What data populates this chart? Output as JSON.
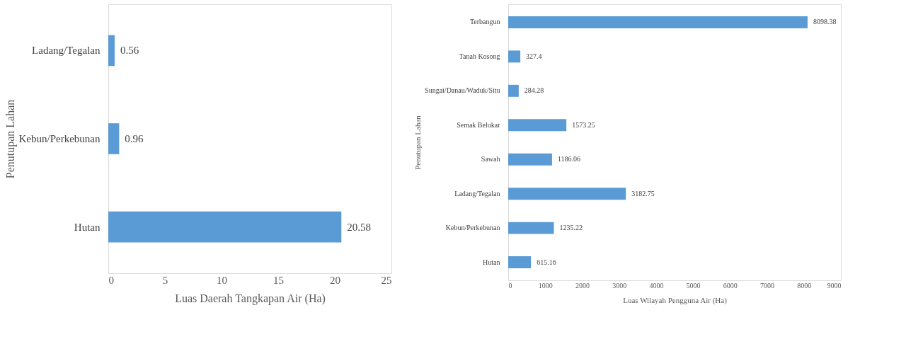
{
  "chart_data": [
    {
      "type": "bar",
      "orientation": "horizontal",
      "categories": [
        "Ladang/Tegalan",
        "Kebun/Perkebunan",
        "Hutan"
      ],
      "values": [
        0.56,
        0.96,
        20.58
      ],
      "color": "#5b9bd5",
      "xlim": [
        0,
        25
      ],
      "xticks": [
        0,
        5,
        10,
        15,
        20,
        25
      ],
      "xlabel": "Luas Daerah Tangkapan  Air (Ha)",
      "ylabel": "Penutupan Lahan",
      "data_labels": true,
      "grid": false
    },
    {
      "type": "bar",
      "orientation": "horizontal",
      "categories": [
        "Terbangun",
        "Tanah Kosong",
        "Sungai/Danau/Waduk/Situ",
        "Semak Belukar",
        "Sawah",
        "Ladang/Tegalan",
        "Kebun/Perkebunan",
        "Hutan"
      ],
      "values": [
        8098.38,
        327.4,
        284.28,
        1573.25,
        1186.06,
        3182.75,
        1235.22,
        615.16
      ],
      "color": "#5b9bd5",
      "xlim": [
        0,
        9000
      ],
      "xticks": [
        0,
        1000,
        2000,
        3000,
        4000,
        5000,
        6000,
        7000,
        8000,
        9000
      ],
      "xlabel": "Luas Wilayah Pengguna Air (Ha)",
      "ylabel": "Penutupan Lahan",
      "data_labels": true,
      "grid": false
    }
  ]
}
